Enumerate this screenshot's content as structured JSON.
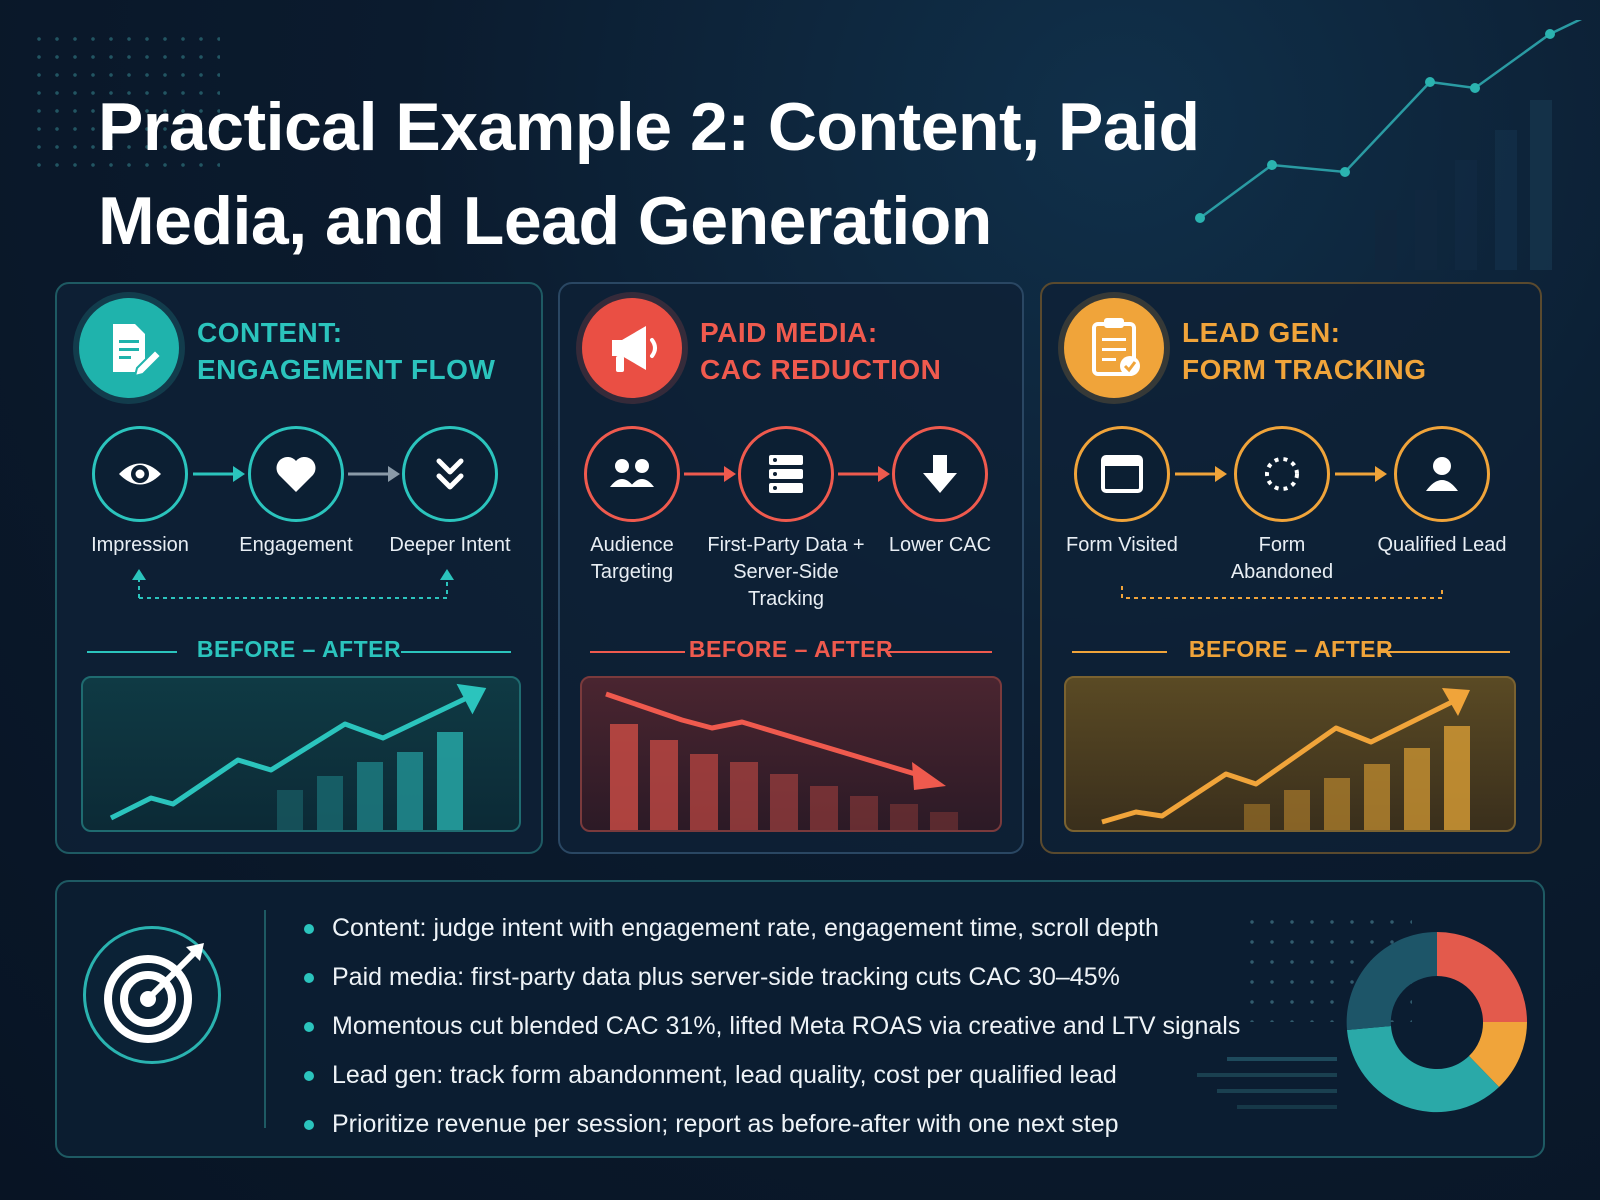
{
  "title": "Practical Example 2: Content, Paid Media, and Lead Generation",
  "colors": {
    "teal": "#2bc4bd",
    "red": "#ef5a4e",
    "orange": "#f0a43a",
    "background": "#0b1b2e"
  },
  "panels": [
    {
      "id": "content",
      "title_line1": "CONTENT:",
      "title_line2": "ENGAGEMENT FLOW",
      "icon": "document-pencil-icon",
      "accent": "#2bc4bd",
      "steps": [
        {
          "label": "Impression",
          "icon": "eye-icon"
        },
        {
          "label": "Engagement",
          "icon": "heart-icon"
        },
        {
          "label": "Deeper Intent",
          "icon": "double-chevron-down-icon"
        }
      ],
      "before_after": "BEFORE – AFTER",
      "trend": "up"
    },
    {
      "id": "paid-media",
      "title_line1": "PAID MEDIA:",
      "title_line2": "CAC REDUCTION",
      "icon": "megaphone-icon",
      "accent": "#ef5a4e",
      "steps": [
        {
          "label": "Audience Targeting",
          "icon": "users-icon"
        },
        {
          "label": "First-Party Data + Server-Side Tracking",
          "icon": "server-icon"
        },
        {
          "label": "Lower CAC",
          "icon": "arrow-down-icon"
        }
      ],
      "before_after": "BEFORE – AFTER",
      "trend": "down"
    },
    {
      "id": "lead-gen",
      "title_line1": "LEAD GEN:",
      "title_line2": "FORM TRACKING",
      "icon": "clipboard-check-icon",
      "accent": "#f0a43a",
      "steps": [
        {
          "label": "Form Visited",
          "icon": "browser-window-icon"
        },
        {
          "label": "Form Abandoned",
          "icon": "dashed-circle-icon"
        },
        {
          "label": "Qualified Lead",
          "icon": "user-icon"
        }
      ],
      "before_after": "BEFORE – AFTER",
      "trend": "up"
    }
  ],
  "summary": {
    "icon": "target-arrow-icon",
    "bullets": [
      "Content: judge intent with engagement rate, engagement time, scroll depth",
      "Paid media: first-party data plus server-side tracking cuts CAC 30–45%",
      "Momentous cut blended CAC 31%, lifted Meta ROAS via creative and LTV signals",
      "Lead gen: track form abandonment, lead quality, cost per qualified lead",
      "Prioritize revenue per session; report as before-after with one next step"
    ]
  }
}
